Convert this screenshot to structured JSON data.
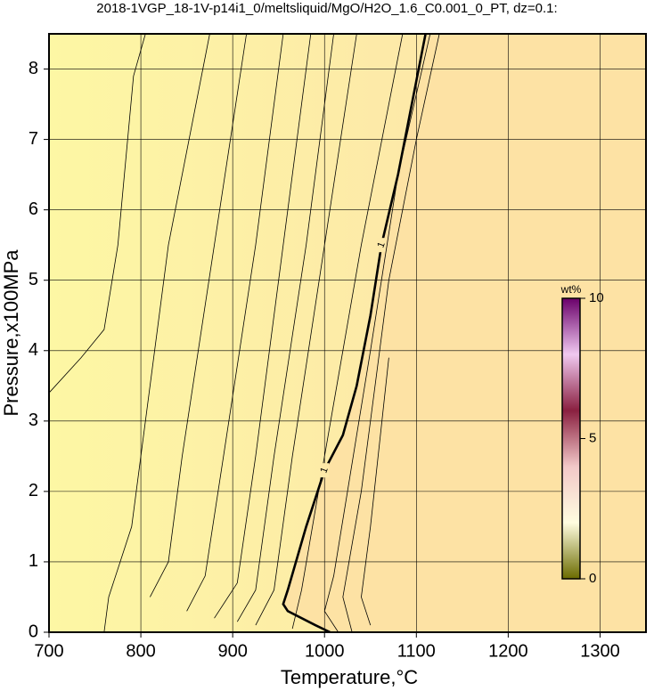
{
  "chart_data": {
    "type": "contour",
    "title": "2018-1VGP_18-1V-p14i1_0/meltsliquid/MgO/H2O_1.6_C0.001_0_PT, dz=0.1:",
    "x_label": "Temperature,°C",
    "y_label": "Pressure,x100MPa",
    "xlim": [
      700,
      1350
    ],
    "ylim": [
      0,
      8.5
    ],
    "xticks": [
      700,
      800,
      900,
      1000,
      1100,
      1200,
      1300
    ],
    "yticks": [
      0,
      1,
      2,
      3,
      4,
      5,
      6,
      7,
      8
    ],
    "grid": true,
    "series": [
      {
        "color": "#000000",
        "x": [
          700,
          735,
          760,
          775,
          792,
          805
        ],
        "y": [
          3.4,
          3.9,
          4.3,
          5.5,
          7.9,
          8.5
        ]
      },
      {
        "color": "#000000",
        "x": [
          760,
          765,
          790,
          805,
          830,
          875
        ],
        "y": [
          0,
          0.5,
          1.5,
          3.0,
          5.5,
          8.5
        ]
      },
      {
        "color": "#000000",
        "x": [
          810,
          830,
          845,
          880,
          915
        ],
        "y": [
          0.5,
          1.0,
          2.5,
          5.5,
          8.5
        ]
      },
      {
        "color": "#000000",
        "x": [
          850,
          870,
          890,
          925,
          955
        ],
        "y": [
          0.3,
          0.8,
          2.5,
          5.5,
          8.5
        ]
      },
      {
        "color": "#000000",
        "x": [
          880,
          905,
          925,
          955,
          985
        ],
        "y": [
          0.2,
          0.7,
          2.5,
          5.5,
          8.5
        ]
      },
      {
        "color": "#000000",
        "x": [
          905,
          925,
          945,
          980,
          1010
        ],
        "y": [
          0.15,
          0.6,
          2.5,
          5.5,
          8.5
        ]
      },
      {
        "color": "#000000",
        "x": [
          925,
          945,
          965,
          1000,
          1035
        ],
        "y": [
          0.1,
          0.6,
          2.5,
          5.5,
          8.5
        ]
      },
      {
        "color": "#000000",
        "x": [
          965,
          975,
          1000,
          1040,
          1085
        ],
        "y": [
          0.05,
          0.6,
          2.5,
          5.5,
          8.5
        ]
      },
      {
        "color": "#000000",
        "level": 1,
        "bold": true,
        "x": [
          1006,
          990,
          960,
          955,
          960,
          980,
          1000,
          1020,
          1035,
          1050,
          1062,
          1080,
          1095,
          1110
        ],
        "y": [
          0,
          0.1,
          0.3,
          0.4,
          0.6,
          1.5,
          2.3,
          2.8,
          3.5,
          4.5,
          5.5,
          6.5,
          7.5,
          8.5
        ]
      },
      {
        "color": "#000000",
        "x": [
          1015,
          1000,
          1010,
          1025,
          1050,
          1080,
          1115
        ],
        "y": [
          0,
          0.3,
          0.8,
          2.0,
          4.0,
          6.5,
          8.5
        ]
      },
      {
        "color": "#000000",
        "x": [
          1030,
          1020,
          1040,
          1070,
          1100,
          1125
        ],
        "y": [
          0,
          0.5,
          2.0,
          5.0,
          7.0,
          8.5
        ]
      },
      {
        "color": "#000000",
        "x": [
          1050,
          1040,
          1050,
          1070
        ],
        "y": [
          0.1,
          0.5,
          1.5,
          3.9
        ]
      }
    ],
    "colorbar": {
      "label": "wt%",
      "lim": [
        0,
        10
      ],
      "ticks": [
        0,
        5,
        10
      ],
      "colors": [
        "#6b6b00",
        "#fffde0",
        "#f2c8c8",
        "#8a2040",
        "#f0c8f0",
        "#6a006a"
      ]
    }
  }
}
